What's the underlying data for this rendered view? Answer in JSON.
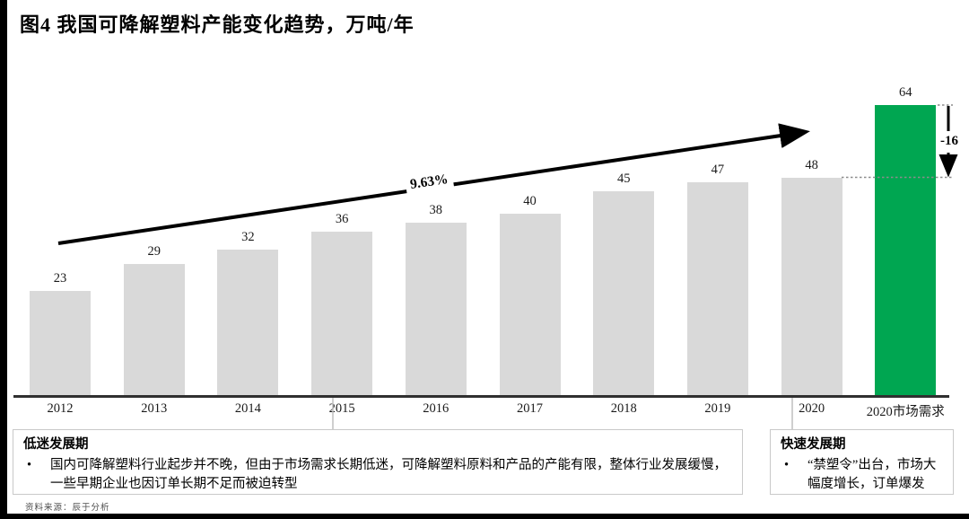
{
  "header": {
    "title": "图4 我国可降解塑料产能变化趋势，万吨/年"
  },
  "chart_data": {
    "type": "bar",
    "title": "图4 我国可降解塑料产能变化趋势，万吨/年",
    "unit": "万吨/年",
    "categories": [
      "2012",
      "2013",
      "2014",
      "2015",
      "2016",
      "2017",
      "2018",
      "2019",
      "2020",
      "2020市场需求"
    ],
    "values": [
      23,
      29,
      32,
      36,
      38,
      40,
      45,
      47,
      48,
      64
    ],
    "highlight_index": 9,
    "bar_color": "#d9d9d9",
    "highlight_color": "#00a651",
    "ylim": [
      0,
      70
    ],
    "grid": false,
    "legend": "none",
    "annotations": {
      "trend_growth_rate": "9.63%",
      "demand_capacity_gap": "-16"
    }
  },
  "annotations": {
    "growth_rate": "9.63%",
    "gap": "-16"
  },
  "phases": {
    "bullet_marker": "•",
    "left": {
      "title": "低迷发展期",
      "bullet": "国内可降解塑料行业起步并不晚，但由于市场需求长期低迷，可降解塑料原料和产品的产能有限，整体行业发展缓慢，一些早期企业也因订单长期不足而被迫转型"
    },
    "right": {
      "title": "快速发展期",
      "bullet": "“禁塑令”出台，市场大幅度增长，订单爆发"
    }
  },
  "footer": {
    "source": "资料来源：辰于分析"
  }
}
